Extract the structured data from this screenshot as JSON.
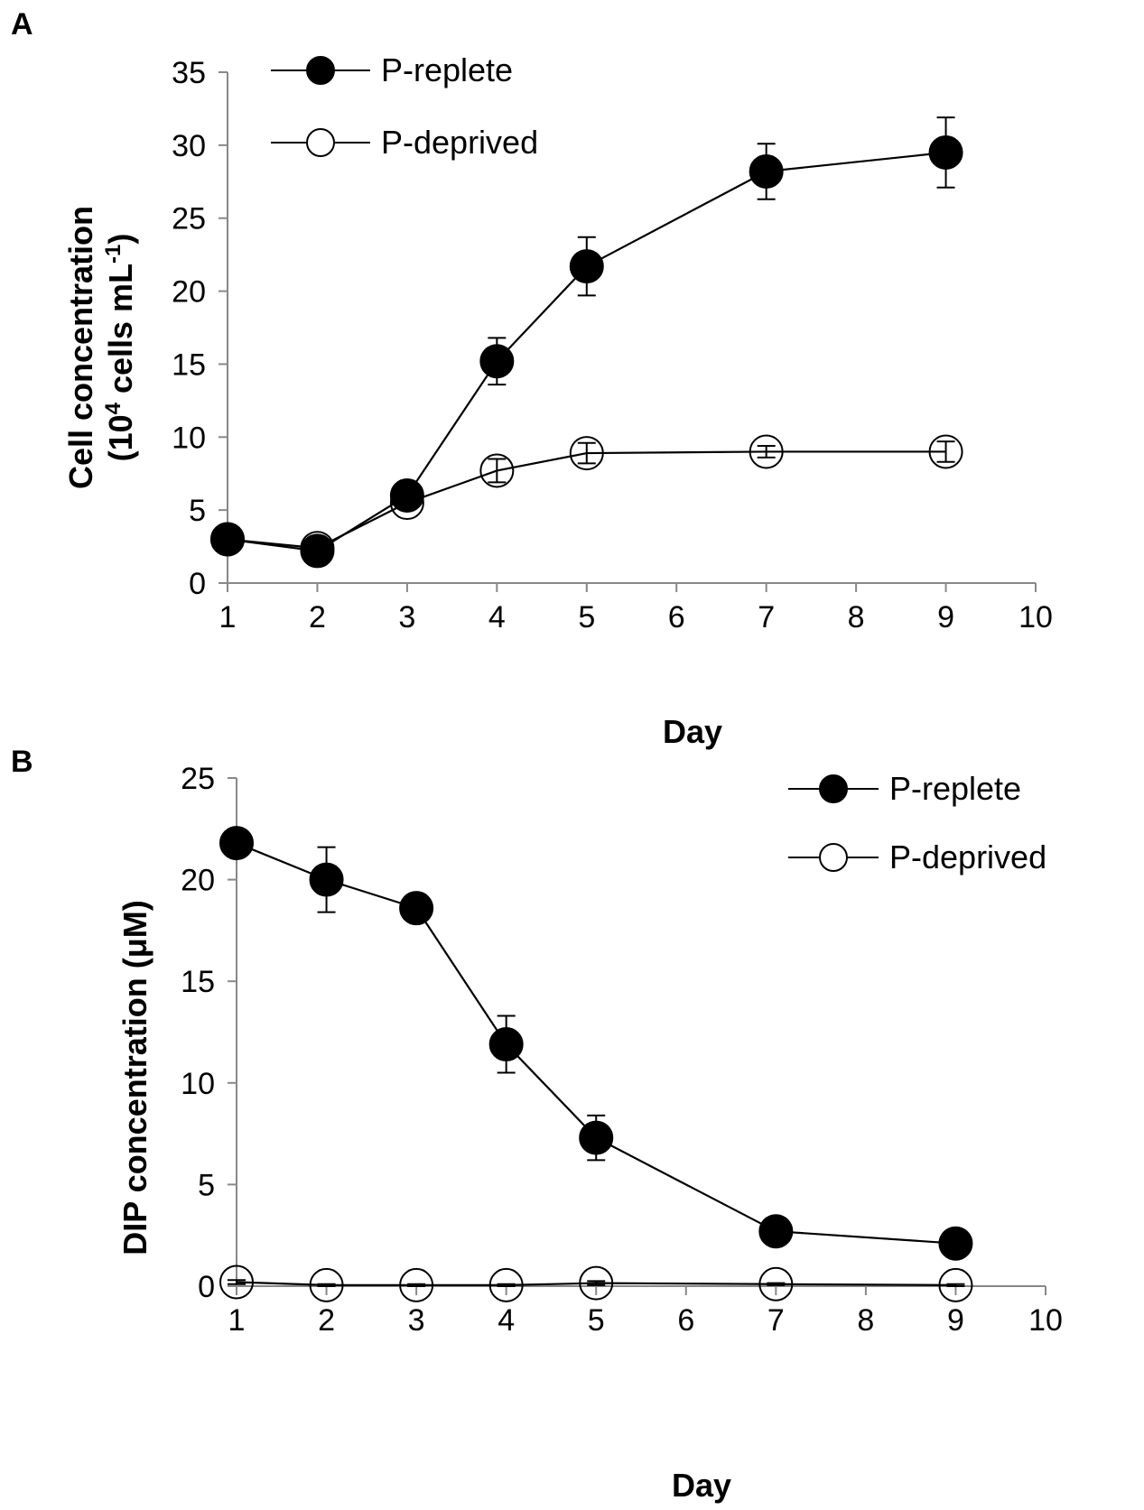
{
  "chart_data": [
    {
      "type": "line",
      "panel_label": "A",
      "xlabel": "Day",
      "ylabel_line1": "Cell concentration",
      "ylabel_prefix": "(10",
      "ylabel_sup1": "4",
      "ylabel_mid": " cells mL",
      "ylabel_sup2": "-1",
      "ylabel_suffix": ")",
      "xlim": [
        1,
        10
      ],
      "ylim": [
        0,
        35
      ],
      "xticks": [
        1,
        2,
        3,
        4,
        5,
        6,
        7,
        8,
        9,
        10
      ],
      "yticks": [
        0,
        5,
        10,
        15,
        20,
        25,
        30,
        35
      ],
      "legend_position": "top-left",
      "series": [
        {
          "name": "P-replete",
          "marker": "filled",
          "x": [
            1,
            2,
            3,
            4,
            5,
            7,
            9
          ],
          "y": [
            3.0,
            2.2,
            6.0,
            15.2,
            21.7,
            28.2,
            29.5
          ],
          "err": [
            0.2,
            0.2,
            0.3,
            1.6,
            2.0,
            1.9,
            2.4
          ]
        },
        {
          "name": "P-deprived",
          "marker": "open",
          "x": [
            1,
            2,
            3,
            4,
            5,
            7,
            9
          ],
          "y": [
            3.0,
            2.4,
            5.5,
            7.7,
            8.9,
            9.0,
            9.0
          ],
          "err": [
            0.2,
            0.2,
            0.3,
            0.8,
            0.7,
            0.4,
            0.7
          ]
        }
      ]
    },
    {
      "type": "line",
      "panel_label": "B",
      "xlabel": "Day",
      "ylabel": "DIP concentration (μM)",
      "xlim": [
        1,
        10
      ],
      "ylim": [
        0,
        25
      ],
      "xticks": [
        1,
        2,
        3,
        4,
        5,
        6,
        7,
        8,
        9,
        10
      ],
      "yticks": [
        0,
        5,
        10,
        15,
        20,
        25
      ],
      "legend_position": "top-right",
      "series": [
        {
          "name": "P-replete",
          "marker": "filled",
          "x": [
            1,
            2,
            3,
            4,
            5,
            7,
            9
          ],
          "y": [
            21.8,
            20.0,
            18.6,
            11.9,
            7.3,
            2.7,
            2.1
          ],
          "err": [
            0.3,
            1.6,
            0.3,
            1.4,
            1.1,
            0.2,
            0.2
          ]
        },
        {
          "name": "P-deprived",
          "marker": "open",
          "x": [
            1,
            2,
            3,
            4,
            5,
            7,
            9
          ],
          "y": [
            0.2,
            0.05,
            0.05,
            0.05,
            0.15,
            0.1,
            0.05
          ],
          "err": [
            0.1,
            0.05,
            0.05,
            0.05,
            0.1,
            0.05,
            0.05
          ]
        }
      ]
    }
  ]
}
